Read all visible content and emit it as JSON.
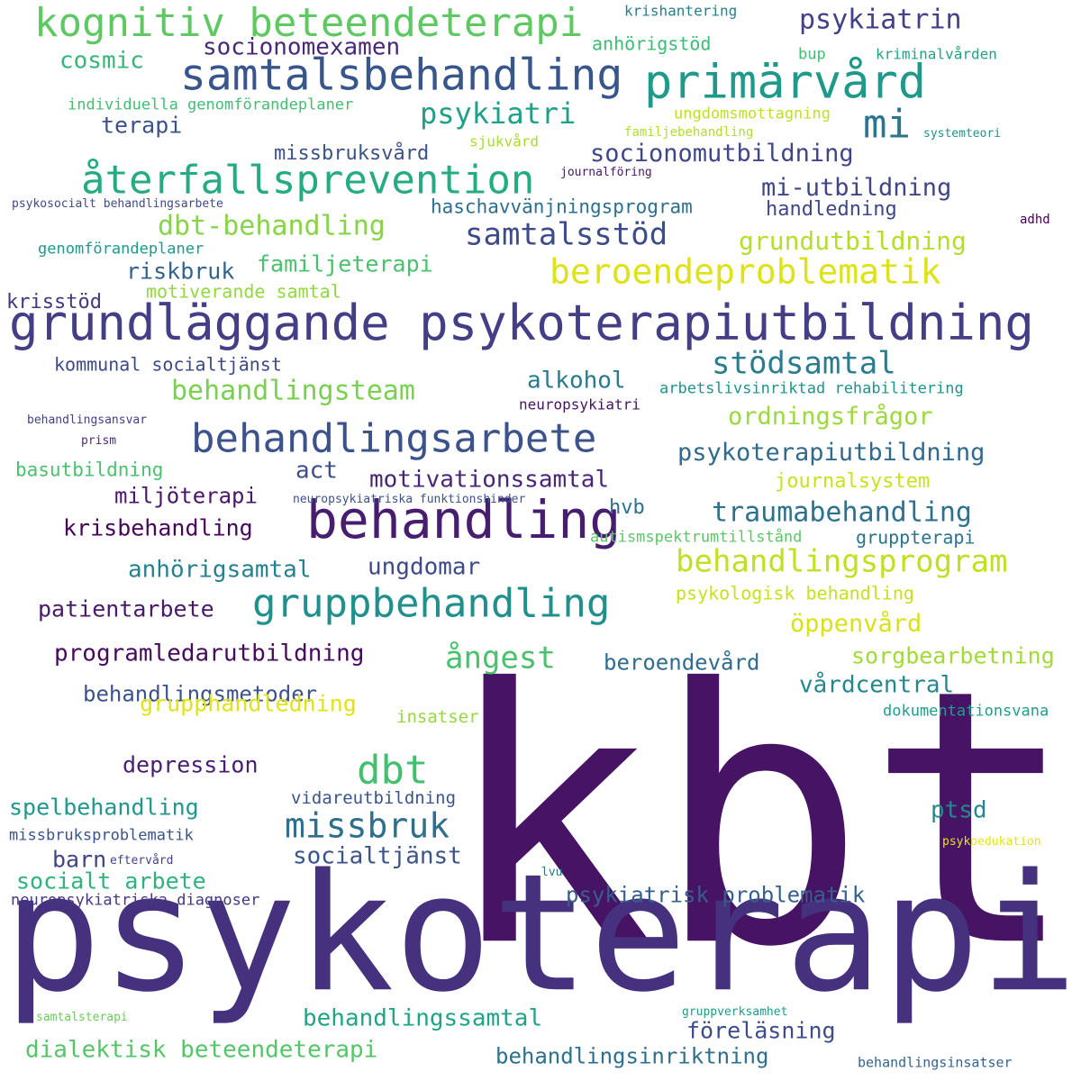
{
  "word_cloud": {
    "words": [
      {
        "text": "kbt",
        "color": "#471365",
        "weight": 100
      },
      {
        "text": "psykoterapi",
        "color": "#46317e",
        "weight": 95
      },
      {
        "text": "grundläggande psykoterapiutbildning",
        "color": "#433e85",
        "weight": 60
      },
      {
        "text": "behandling",
        "color": "#471d6f",
        "weight": 50
      },
      {
        "text": "samtalsbehandling",
        "color": "#39568c",
        "weight": 45
      },
      {
        "text": "primärvård",
        "color": "#1f9a8a",
        "weight": 44
      },
      {
        "text": "kognitiv beteendeterapi",
        "color": "#5ec962",
        "weight": 42
      },
      {
        "text": "behandlingsarbete",
        "color": "#3b528b",
        "weight": 40
      },
      {
        "text": "återfallsprevention",
        "color": "#25ab82",
        "weight": 40
      },
      {
        "text": "gruppbehandling",
        "color": "#21908d",
        "weight": 40
      },
      {
        "text": "mi",
        "color": "#2a768e",
        "weight": 40
      },
      {
        "text": "beroendeproblematik",
        "color": "#dde318",
        "weight": 36
      },
      {
        "text": "dbt",
        "color": "#44bf70",
        "weight": 36
      },
      {
        "text": "samtalsstöd",
        "color": "#3e4c8a",
        "weight": 32
      },
      {
        "text": "behandlingsprogram",
        "color": "#c2df23",
        "weight": 32
      },
      {
        "text": "missbruk",
        "color": "#2e6f8e",
        "weight": 32
      },
      {
        "text": "stödsamtal",
        "color": "#287d8e",
        "weight": 30
      },
      {
        "text": "psykiatri",
        "color": "#1fa187",
        "weight": 28
      },
      {
        "text": "behandlingsteam",
        "color": "#7ad151",
        "weight": 28
      },
      {
        "text": "traumabehandling",
        "color": "#2c728e",
        "weight": 28
      },
      {
        "text": "psykiatrin",
        "color": "#424086",
        "weight": 26
      },
      {
        "text": "dbt-behandling",
        "color": "#86d549",
        "weight": 26
      },
      {
        "text": "grundutbildning",
        "color": "#b5de2b",
        "weight": 24
      },
      {
        "text": "ordningsfrågor",
        "color": "#9bd93c",
        "weight": 24
      },
      {
        "text": "socionomexamen",
        "color": "#482878",
        "weight": 24
      },
      {
        "text": "socionomutbildning",
        "color": "#3f4788",
        "weight": 24
      },
      {
        "text": "mi-utbildning",
        "color": "#414487",
        "weight": 24
      },
      {
        "text": "psykoterapiutbildning",
        "color": "#306a8e",
        "weight": 24
      },
      {
        "text": "motivationssamtal",
        "color": "#482575",
        "weight": 24
      },
      {
        "text": "anhörigsamtal",
        "color": "#26818e",
        "weight": 24
      },
      {
        "text": "öppenvård",
        "color": "#d8e219",
        "weight": 24
      },
      {
        "text": "ångest",
        "color": "#4ac16d",
        "weight": 26
      },
      {
        "text": "dialektisk beteendeterapi",
        "color": "#54c568",
        "weight": 24
      },
      {
        "text": "behandlingsinriktning",
        "color": "#2d708e",
        "weight": 22
      },
      {
        "text": "behandlingssamtal",
        "color": "#20a386",
        "weight": 24
      },
      {
        "text": "socialtjänst",
        "color": "#3a538b",
        "weight": 24
      },
      {
        "text": "ptsd",
        "color": "#23898e",
        "weight": 22
      },
      {
        "text": "familjeterapi",
        "color": "#4ac16d",
        "weight": 22
      },
      {
        "text": "riskbruk",
        "color": "#33638d",
        "weight": 22
      },
      {
        "text": "terapi",
        "color": "#3b528b",
        "weight": 22
      },
      {
        "text": "cosmic",
        "color": "#35b779",
        "weight": 22
      },
      {
        "text": "alkohol",
        "color": "#297a8e",
        "weight": 22
      },
      {
        "text": "act",
        "color": "#3d4e8a",
        "weight": 22
      },
      {
        "text": "miljöterapi",
        "color": "#481769",
        "weight": 22
      },
      {
        "text": "krisbehandling",
        "color": "#450559",
        "weight": 22
      },
      {
        "text": "ungdomar",
        "color": "#3e4a89",
        "weight": 22
      },
      {
        "text": "patientarbete",
        "color": "#481a6c",
        "weight": 22
      },
      {
        "text": "programledarutbildning",
        "color": "#460a5d",
        "weight": 22
      },
      {
        "text": "behandlingsmetoder",
        "color": "#3b528b",
        "weight": 22
      },
      {
        "text": "beroendevård",
        "color": "#2f6c8e",
        "weight": 22
      },
      {
        "text": "vårdcentral",
        "color": "#24878e",
        "weight": 22
      },
      {
        "text": "sorgbearbetning",
        "color": "#a2da37",
        "weight": 22
      },
      {
        "text": "grupphandledning",
        "color": "#dfe318",
        "weight": 22
      },
      {
        "text": "depression",
        "color": "#481f70",
        "weight": 22
      },
      {
        "text": "spelbehandling",
        "color": "#1f988b",
        "weight": 22
      },
      {
        "text": "socialt arbete",
        "color": "#2eb37c",
        "weight": 22
      },
      {
        "text": "barn",
        "color": "#414487",
        "weight": 22
      },
      {
        "text": "psykiatrisk problematik",
        "color": "#355f8d",
        "weight": 22
      },
      {
        "text": "föreläsning",
        "color": "#3e4c8a",
        "weight": 22
      },
      {
        "text": "missbruksvård",
        "color": "#3b528b",
        "weight": 20
      },
      {
        "text": "haschavvänjningsprogram",
        "color": "#2e6e8e",
        "weight": 19
      },
      {
        "text": "handledning",
        "color": "#3f4889",
        "weight": 19
      },
      {
        "text": "motiverande samtal",
        "color": "#93d741",
        "weight": 19
      },
      {
        "text": "kommunal socialtjänst",
        "color": "#3e4989",
        "weight": 18
      },
      {
        "text": "krisstöd",
        "color": "#453781",
        "weight": 19
      },
      {
        "text": "journalsystem",
        "color": "#cae11f",
        "weight": 19
      },
      {
        "text": "basutbildning",
        "color": "#4ac16d",
        "weight": 19
      },
      {
        "text": "hvb",
        "color": "#2d718e",
        "weight": 19
      },
      {
        "text": "anhörigstöd",
        "color": "#3dbc74",
        "weight": 17
      },
      {
        "text": "psykologisk behandling",
        "color": "#c8e020",
        "weight": 17
      },
      {
        "text": "gruppterapi",
        "color": "#2c738e",
        "weight": 17
      },
      {
        "text": "insatser",
        "color": "#95d840",
        "weight": 17
      },
      {
        "text": "dokumentationsvana",
        "color": "#1f9f88",
        "weight": 15
      },
      {
        "text": "vidareutbildning",
        "color": "#3a548c",
        "weight": 17
      },
      {
        "text": "autismspektrumtillstånd",
        "color": "#5ac864",
        "weight": 15
      },
      {
        "text": "arbetslivsinriktad rehabilitering",
        "color": "#20928c",
        "weight": 15
      },
      {
        "text": "individuella genomförandeplaner",
        "color": "#42be71",
        "weight": 15
      },
      {
        "text": "genomförandeplaner",
        "color": "#1e9b8a",
        "weight": 15
      },
      {
        "text": "ungdomsmottagning",
        "color": "#bddf26",
        "weight": 14
      },
      {
        "text": "kriminalvården",
        "color": "#20a486",
        "weight": 14
      },
      {
        "text": "krishantering",
        "color": "#277f8e",
        "weight": 14
      },
      {
        "text": "bup",
        "color": "#44bf70",
        "weight": 14
      },
      {
        "text": "missbruksproblematik",
        "color": "#3b528b",
        "weight": 14
      },
      {
        "text": "neuropsykiatriska diagnoser",
        "color": "#453882",
        "weight": 14
      },
      {
        "text": "neuropsykiatri",
        "color": "#471365",
        "weight": 14
      },
      {
        "text": "sjukvård",
        "color": "#a8db34",
        "weight": 14
      },
      {
        "text": "behandlingsinsatser",
        "color": "#33638d",
        "weight": 14
      },
      {
        "text": "familjebehandling",
        "color": "#b0dd2f",
        "weight": 12
      },
      {
        "text": "systemteori",
        "color": "#1f968b",
        "weight": 12
      },
      {
        "text": "journalföring",
        "color": "#481769",
        "weight": 12
      },
      {
        "text": "psykosocialt behandlingsarbete",
        "color": "#3e4a89",
        "weight": 12
      },
      {
        "text": "behandlingsansvar",
        "color": "#424086",
        "weight": 12
      },
      {
        "text": "prism",
        "color": "#472d7b",
        "weight": 12
      },
      {
        "text": "neuropsykiatriska funktionshinder",
        "color": "#3b528b",
        "weight": 12
      },
      {
        "text": "adhd",
        "color": "#440154",
        "weight": 12
      },
      {
        "text": "eftervård",
        "color": "#414487",
        "weight": 12
      },
      {
        "text": "psykoedukation",
        "color": "#e2e418",
        "weight": 12
      },
      {
        "text": "lvu",
        "color": "#2a788e",
        "weight": 12
      },
      {
        "text": "samtalsterapi",
        "color": "#6ccd5a",
        "weight": 12
      },
      {
        "text": "gruppverksamhet",
        "color": "#1e9c89",
        "weight": 12
      }
    ]
  }
}
